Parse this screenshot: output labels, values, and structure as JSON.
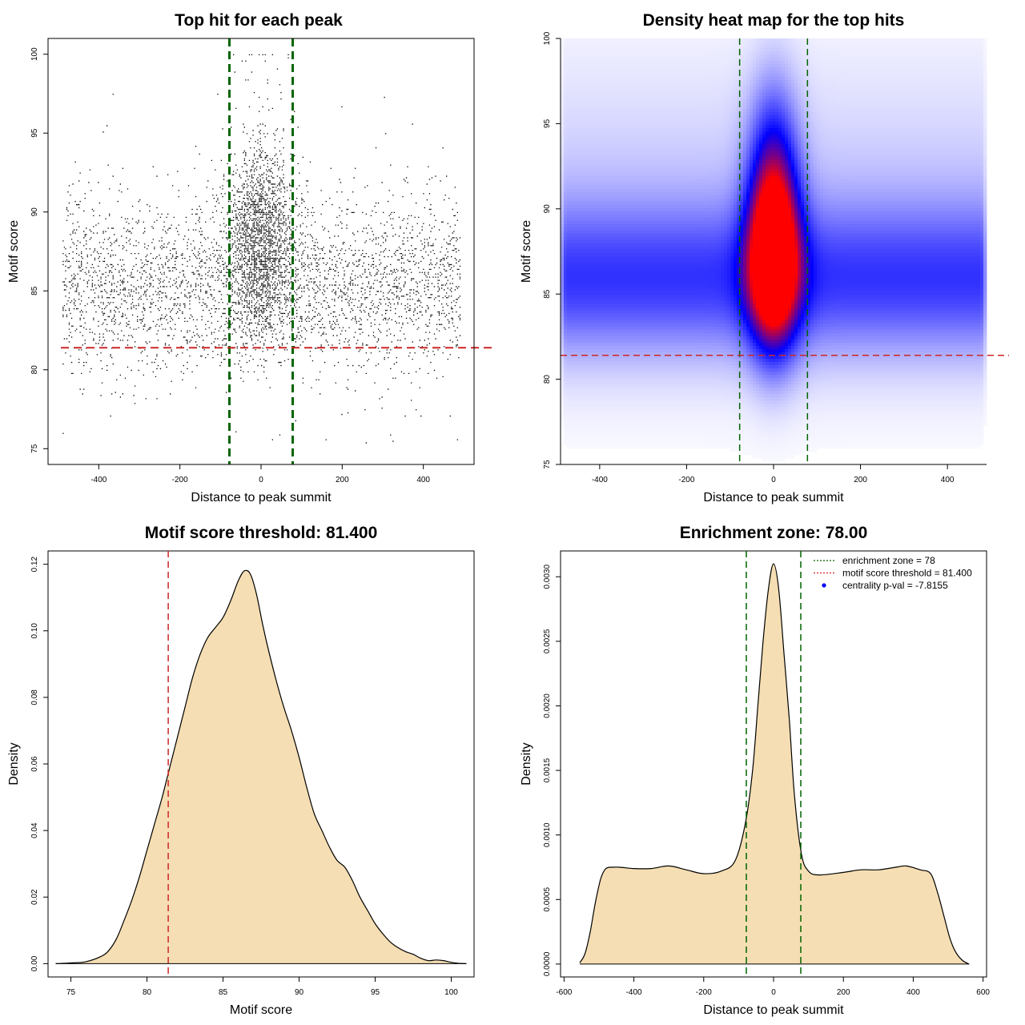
{
  "chart_data": [
    {
      "type": "scatter",
      "title": "Top hit for each peak",
      "xlabel": "Distance to peak summit",
      "ylabel": "Motif score",
      "xlim": [
        -525,
        525
      ],
      "ylim": [
        74,
        101
      ],
      "xticks": [
        -400,
        -200,
        0,
        200,
        400
      ],
      "yticks": [
        75,
        80,
        85,
        90,
        95,
        100
      ],
      "point_cloud": {
        "x_range": [
          -490,
          490
        ],
        "y_range": [
          75,
          100
        ],
        "background_y_mode": 85.5,
        "central_x_mode": 0,
        "central_y_mode": 88
      },
      "vlines": [
        -78,
        78
      ],
      "hline": 81.4,
      "colors": {
        "points": "#000000",
        "vline": "#006400",
        "hline": "#cd2626"
      }
    },
    {
      "type": "heatmap",
      "title": "Density heat map for the top hits",
      "xlabel": "Distance to peak summit",
      "ylabel": "Motif score",
      "xlim": [
        -490,
        490
      ],
      "ylim": [
        75,
        100
      ],
      "xticks": [
        -400,
        -200,
        0,
        200,
        400
      ],
      "yticks": [
        75,
        80,
        85,
        90,
        95,
        100
      ],
      "peak_density_at": {
        "x": 0,
        "y": 86.5
      },
      "vlines": [
        -78,
        78
      ],
      "hline": 81.4,
      "colors": {
        "low": "#ffffff",
        "mid": "#0000ff",
        "high": "#ff0000",
        "vline": "#006400",
        "hline": "#cd2626"
      }
    },
    {
      "type": "area",
      "title": "Motif score threshold: 81.400",
      "xlabel": "Motif score",
      "ylabel": "Density",
      "xlim": [
        73.5,
        101.5
      ],
      "ylim": [
        -0.004,
        0.124
      ],
      "xticks": [
        75,
        80,
        85,
        90,
        95,
        100
      ],
      "yticks": [
        "0.00",
        "0.02",
        "0.04",
        "0.06",
        "0.08",
        "0.10",
        "0.12"
      ],
      "x": [
        74,
        75,
        76,
        77,
        77.5,
        78,
        78.5,
        79,
        79.5,
        80,
        80.5,
        81,
        81.5,
        82,
        82.5,
        83,
        83.5,
        84,
        84.5,
        85,
        85.5,
        86,
        86.4,
        86.8,
        87.2,
        87.6,
        88,
        88.5,
        89,
        89.5,
        90,
        90.5,
        91,
        91.5,
        92,
        92.5,
        93,
        93.5,
        94,
        94.5,
        95,
        95.5,
        96,
        96.5,
        97,
        97.5,
        98,
        98.5,
        99,
        99.5,
        100,
        100.5,
        101
      ],
      "y": [
        0.0,
        0.0002,
        0.0006,
        0.0022,
        0.004,
        0.0075,
        0.013,
        0.019,
        0.026,
        0.034,
        0.042,
        0.05,
        0.059,
        0.068,
        0.077,
        0.086,
        0.093,
        0.098,
        0.101,
        0.104,
        0.109,
        0.115,
        0.118,
        0.117,
        0.111,
        0.102,
        0.094,
        0.085,
        0.077,
        0.07,
        0.062,
        0.053,
        0.045,
        0.04,
        0.035,
        0.031,
        0.029,
        0.025,
        0.02,
        0.016,
        0.012,
        0.009,
        0.0065,
        0.0048,
        0.0036,
        0.0028,
        0.0016,
        0.0009,
        0.0011,
        0.0009,
        0.0004,
        0.0001,
        0.0
      ],
      "vline": 81.4,
      "colors": {
        "fill": "#f5deb3",
        "stroke": "#000000",
        "vline": "#cd2626"
      }
    },
    {
      "type": "area",
      "title": "Enrichment zone: 78.00",
      "xlabel": "Distance to peak summit",
      "ylabel": "Density",
      "xlim": [
        -610,
        610
      ],
      "ylim": [
        -0.0001,
        0.0032
      ],
      "xticks": [
        -600,
        -400,
        -200,
        0,
        200,
        400,
        600
      ],
      "yticks": [
        "0.0000",
        "0.0005",
        "0.0010",
        "0.0015",
        "0.0020",
        "0.0025",
        "0.0030"
      ],
      "x": [
        -555,
        -540,
        -525,
        -510,
        -495,
        -480,
        -460,
        -440,
        -400,
        -350,
        -300,
        -250,
        -200,
        -150,
        -110,
        -80,
        -60,
        -45,
        -30,
        -15,
        0,
        15,
        30,
        45,
        60,
        80,
        100,
        130,
        200,
        250,
        300,
        350,
        380,
        420,
        450,
        470,
        490,
        505,
        520,
        540,
        560
      ],
      "y": [
        1e-05,
        8e-05,
        0.00025,
        0.00048,
        0.00066,
        0.00074,
        0.00075,
        0.00075,
        0.00074,
        0.00074,
        0.00076,
        0.00073,
        0.0007,
        0.00072,
        0.0008,
        0.0011,
        0.0015,
        0.002,
        0.0025,
        0.0029,
        0.0031,
        0.0029,
        0.0024,
        0.0019,
        0.0013,
        0.00085,
        0.00072,
        0.00069,
        0.00071,
        0.00073,
        0.00073,
        0.00075,
        0.00076,
        0.00073,
        0.0007,
        0.00055,
        0.00035,
        0.0002,
        0.0001,
        3e-05,
        0.0
      ],
      "vlines": [
        -78,
        78
      ],
      "legend": {
        "position": "top-right",
        "entries": [
          {
            "label": "enrichment zone = 78",
            "style": "dotted-line",
            "color": "#006400"
          },
          {
            "label": "motif score threshold = 81.400",
            "style": "dotted-line",
            "color": "#cd2626"
          },
          {
            "label": "centrality p-val = -7.8155",
            "style": "point",
            "color": "#0000ff"
          }
        ]
      },
      "colors": {
        "fill": "#f5deb3",
        "stroke": "#000000",
        "vline": "#006400"
      }
    }
  ]
}
